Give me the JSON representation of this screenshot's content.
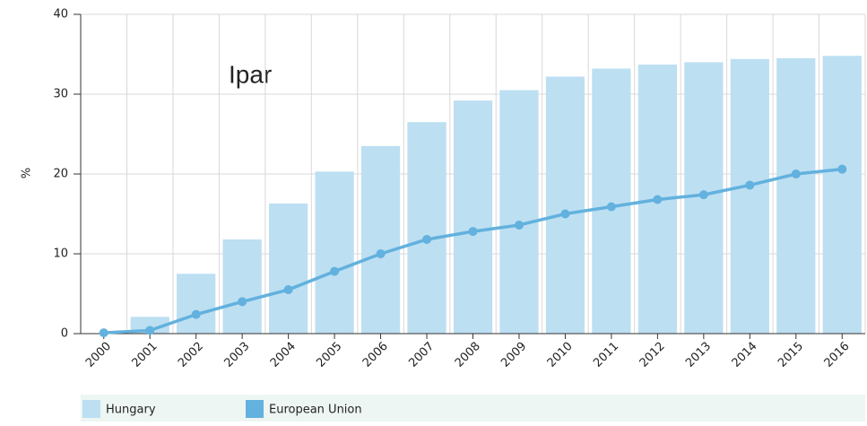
{
  "chart_data": {
    "type": "bar_line",
    "title": "Ipar",
    "y_label": "%",
    "categories": [
      "2000",
      "2001",
      "2002",
      "2003",
      "2004",
      "2005",
      "2006",
      "2007",
      "2008",
      "2009",
      "2010",
      "2011",
      "2012",
      "2013",
      "2014",
      "2015",
      "2016"
    ],
    "series": [
      {
        "name": "Hungary",
        "type": "bar",
        "color": "#bcdff2",
        "values": [
          0,
          2.1,
          7.5,
          11.8,
          16.3,
          20.3,
          23.5,
          26.5,
          29.2,
          30.5,
          32.2,
          33.2,
          33.7,
          34.0,
          34.4,
          34.5,
          34.8
        ]
      },
      {
        "name": "European Union",
        "type": "line",
        "color": "#62b1de",
        "values": [
          0.1,
          0.4,
          2.4,
          4.0,
          5.5,
          7.8,
          10.0,
          11.8,
          12.8,
          13.6,
          15.0,
          15.9,
          16.8,
          17.4,
          18.6,
          20.0,
          20.6
        ]
      }
    ],
    "ylim": [
      0,
      40
    ],
    "yticks": [
      0,
      10,
      20,
      30,
      40
    ],
    "grid": true,
    "legend": "bottom"
  }
}
